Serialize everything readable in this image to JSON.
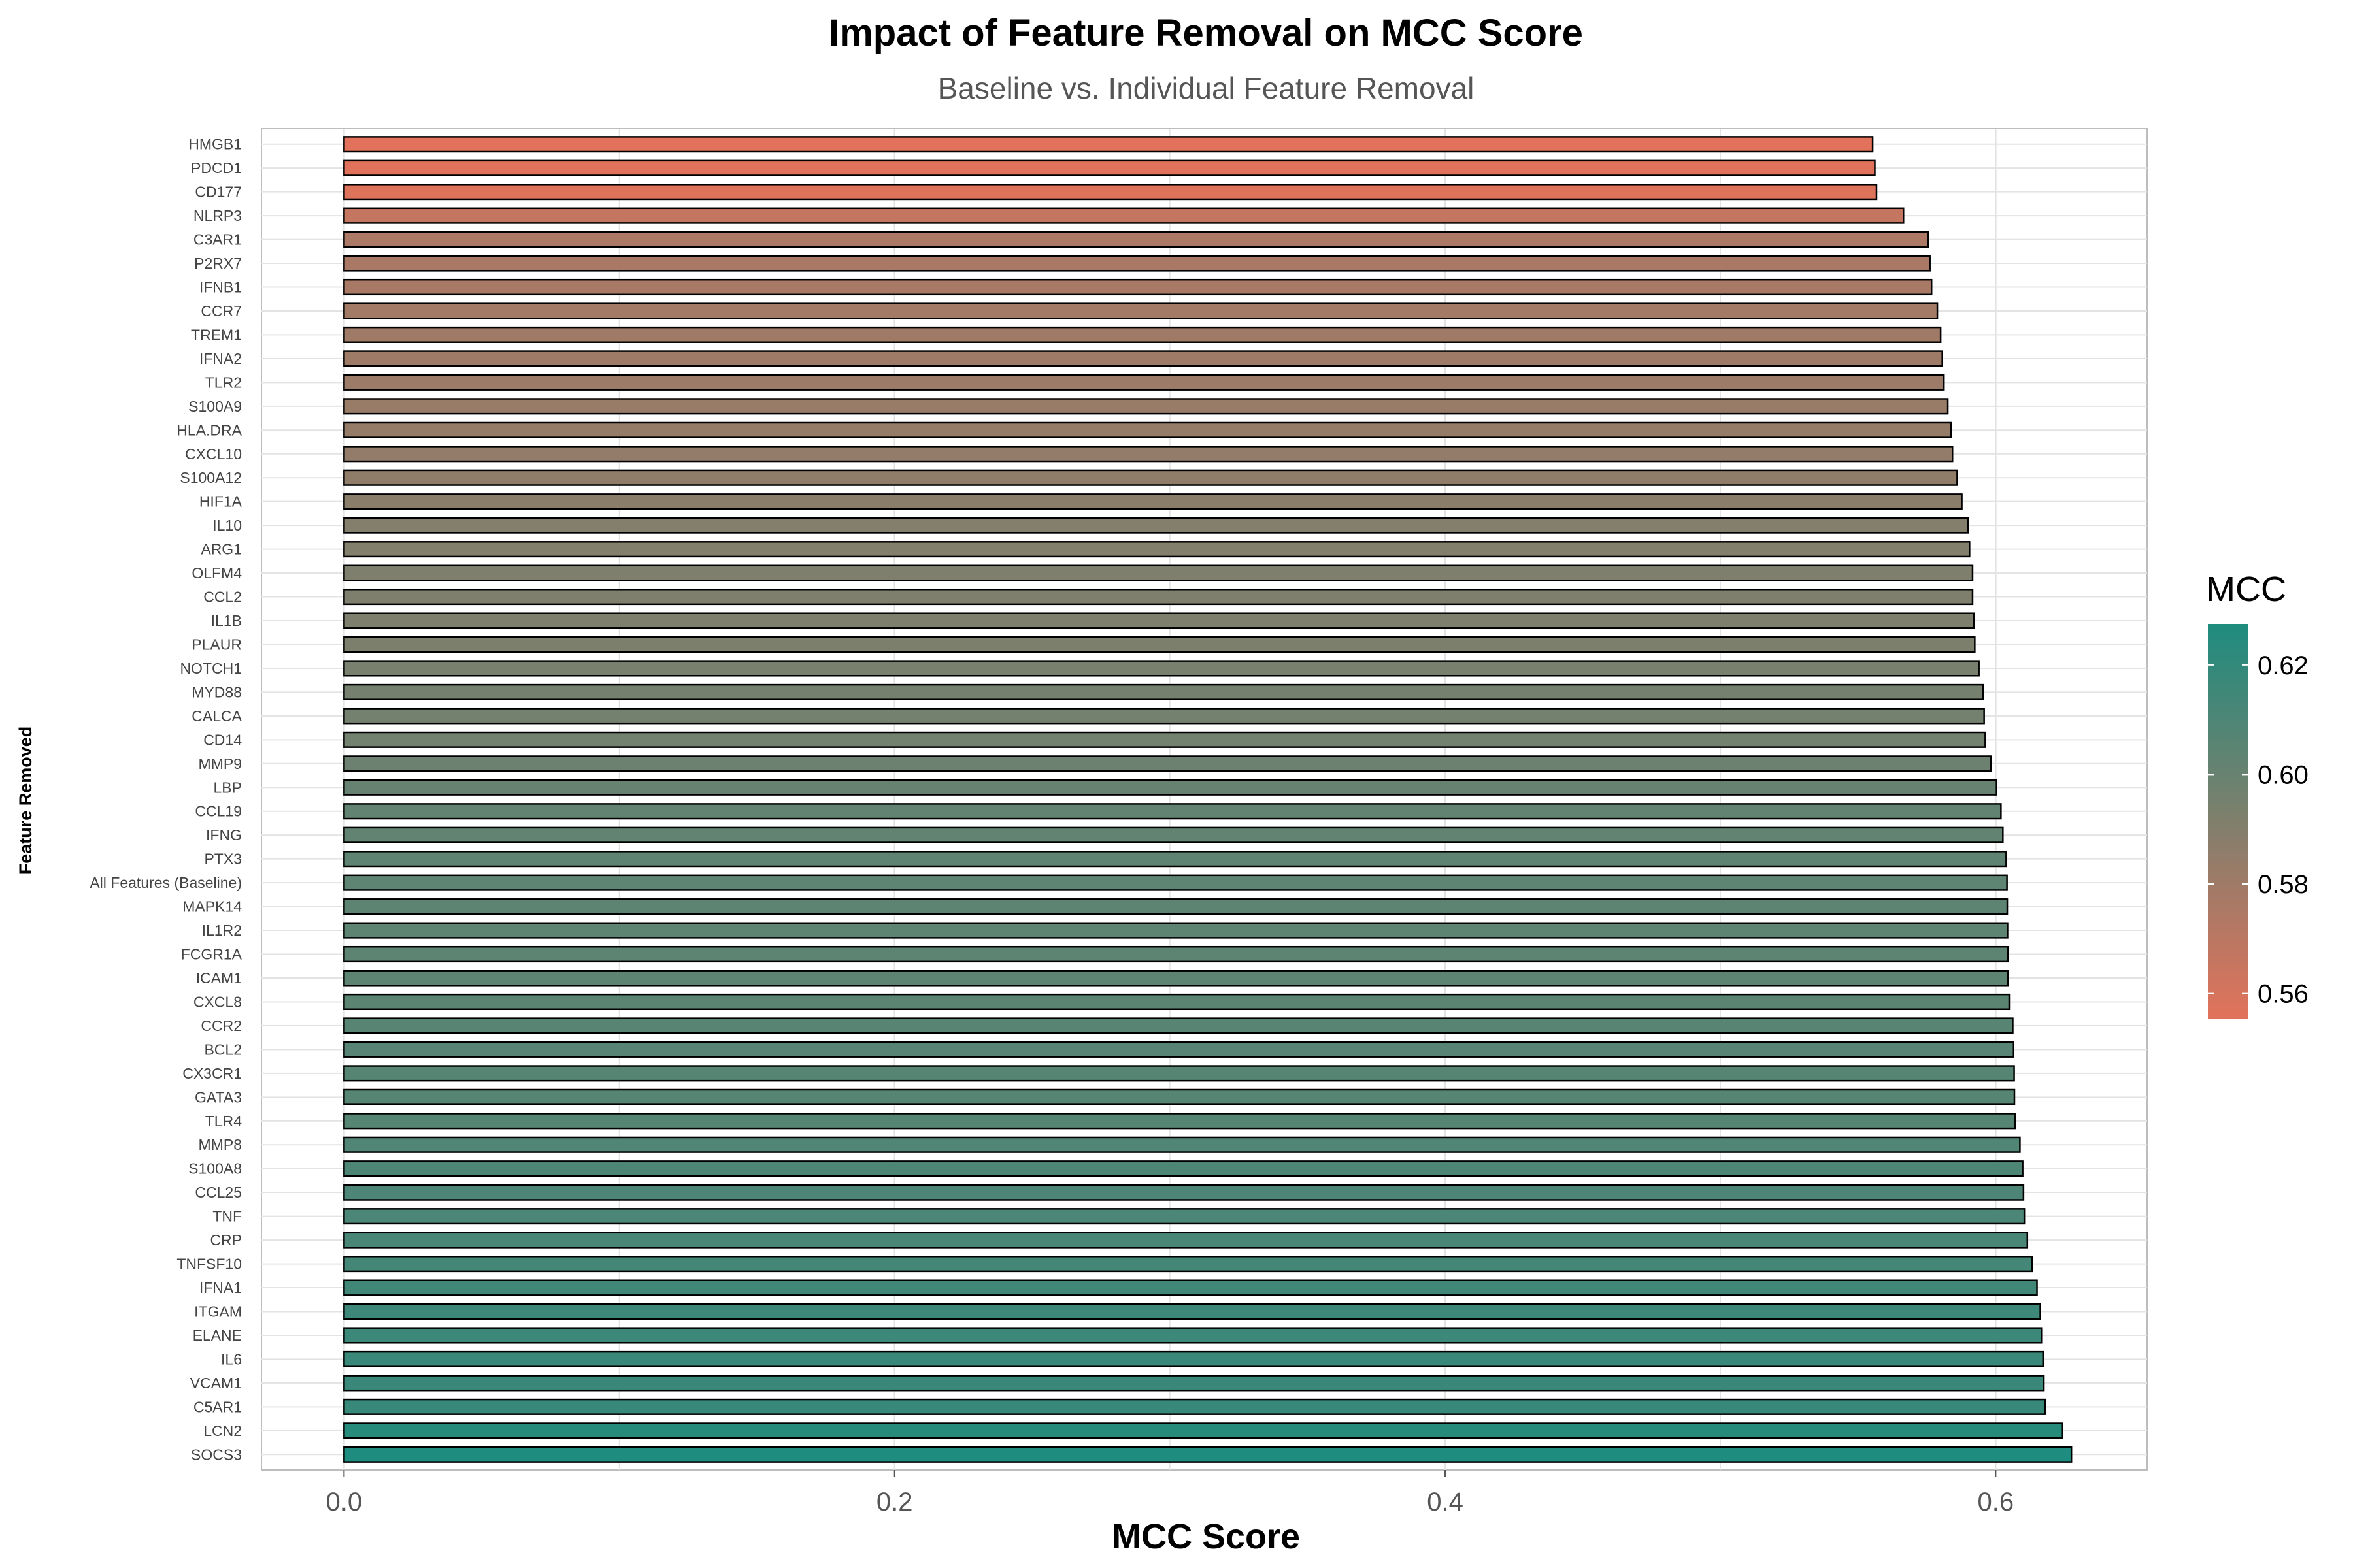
{
  "chart_data": {
    "type": "bar",
    "orientation": "horizontal",
    "title": "Impact of Feature Removal on MCC Score",
    "subtitle": "Baseline vs. Individual Feature Removal",
    "xlabel": "MCC Score",
    "ylabel": "Feature Removed",
    "xlim": [
      -0.03,
      0.655
    ],
    "xticks": [
      0.0,
      0.2,
      0.4,
      0.6
    ],
    "xtick_labels": [
      "0.0",
      "0.2",
      "0.4",
      "0.6"
    ],
    "grid": true,
    "legend": {
      "title": "MCC",
      "placement": "right",
      "range": [
        0.5553,
        0.6275
      ],
      "ticks": [
        0.56,
        0.58,
        0.6,
        0.62
      ],
      "tick_labels": [
        "0.56",
        "0.58",
        "0.60",
        "0.62"
      ],
      "low_color": "#E2725B",
      "high_color": "#1E8C7E"
    },
    "categories": [
      "HMGB1",
      "PDCD1",
      "CD177",
      "NLRP3",
      "C3AR1",
      "P2RX7",
      "IFNB1",
      "CCR7",
      "TREM1",
      "IFNA2",
      "TLR2",
      "S100A9",
      "HLA.DRA",
      "CXCL10",
      "S100A12",
      "HIF1A",
      "IL10",
      "ARG1",
      "OLFM4",
      "CCL2",
      "IL1B",
      "PLAUR",
      "NOTCH1",
      "MYD88",
      "CALCA",
      "CD14",
      "MMP9",
      "LBP",
      "CCL19",
      "IFNG",
      "PTX3",
      "All Features (Baseline)",
      "MAPK14",
      "IL1R2",
      "FCGR1A",
      "ICAM1",
      "CXCL8",
      "CCR2",
      "BCL2",
      "CX3CR1",
      "GATA3",
      "TLR4",
      "MMP8",
      "S100A8",
      "CCL25",
      "TNF",
      "CRP",
      "TNFSF10",
      "IFNA1",
      "ITGAM",
      "ELANE",
      "IL6",
      "VCAM1",
      "C5AR1",
      "LCN2",
      "SOCS3"
    ],
    "values": [
      0.5553,
      0.5561,
      0.5567,
      0.5665,
      0.5754,
      0.5761,
      0.5767,
      0.5788,
      0.58,
      0.5806,
      0.5812,
      0.5826,
      0.5838,
      0.5843,
      0.586,
      0.5877,
      0.5899,
      0.5905,
      0.5916,
      0.5916,
      0.5921,
      0.5924,
      0.5939,
      0.5954,
      0.5958,
      0.5962,
      0.5983,
      0.6003,
      0.6019,
      0.6026,
      0.6038,
      0.6041,
      0.6042,
      0.6043,
      0.6044,
      0.6044,
      0.6049,
      0.6062,
      0.6065,
      0.6067,
      0.6068,
      0.607,
      0.6088,
      0.6098,
      0.6101,
      0.6104,
      0.6115,
      0.6132,
      0.615,
      0.6162,
      0.6166,
      0.6172,
      0.6175,
      0.618,
      0.6243,
      0.6275
    ]
  },
  "colors": {
    "bar_outline": "#000000",
    "panel_border": "#BDBDBD",
    "grid": "#E3E3E3"
  }
}
